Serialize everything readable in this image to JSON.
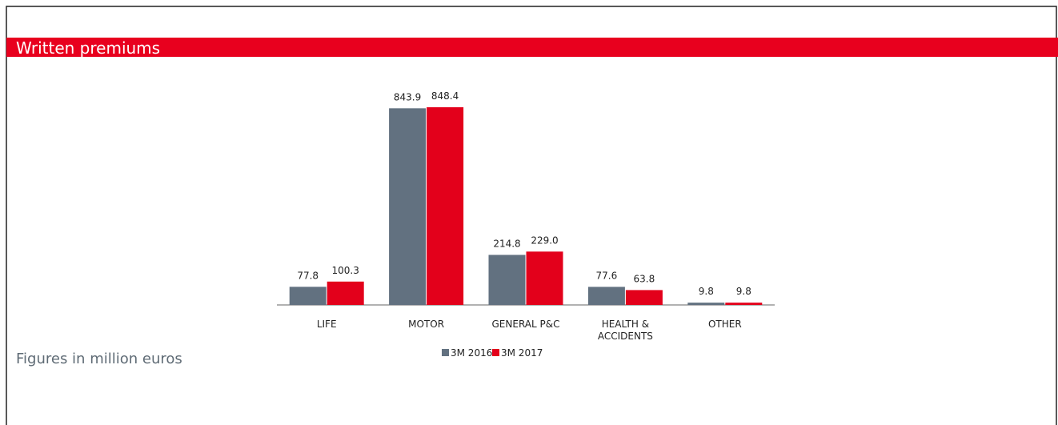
{
  "chart_data": {
    "type": "bar",
    "title": "Written premiums",
    "footnote": "Figures in million euros",
    "categories": [
      "LIFE",
      "MOTOR",
      "GENERAL P&C",
      "HEALTH & ACCIDENTS",
      "OTHER"
    ],
    "series": [
      {
        "name": "3M 2016",
        "color": "#627180",
        "values": [
          77.8,
          843.9,
          214.8,
          77.6,
          9.8
        ],
        "value_labels": [
          "77.8",
          "843.9",
          "214.8",
          "77.6",
          "9.8"
        ]
      },
      {
        "name": "3M 2017",
        "color": "#e3001b",
        "values": [
          100.3,
          848.4,
          229.0,
          63.8,
          9.8
        ],
        "value_labels": [
          "100.3",
          "848.4",
          "229.0",
          "63.8",
          "9.8"
        ]
      }
    ]
  }
}
